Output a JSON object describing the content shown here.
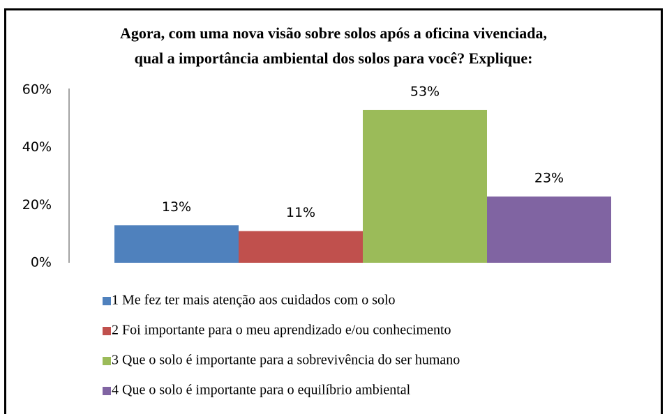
{
  "chart_data": {
    "type": "bar",
    "title": [
      "Agora, com uma nova visão sobre solos após a oficina vivenciada,",
      "qual a importância ambiental dos solos para você? Explique:"
    ],
    "series": [
      {
        "name": "1 Me fez ter mais atenção aos cuidados com o solo",
        "color": "#4f81bd",
        "values": [
          13
        ],
        "value_labels": [
          "13%"
        ]
      },
      {
        "name": "2 Foi importante para o meu aprendizado e/ou conhecimento",
        "color": "#c0504d",
        "values": [
          11
        ],
        "value_labels": [
          "11%"
        ]
      },
      {
        "name": "3 Que o solo é importante para a sobrevivência do ser humano",
        "color": "#9bbb59",
        "values": [
          53
        ],
        "value_labels": [
          "53%"
        ]
      },
      {
        "name": "4 Que o solo é importante para o equilíbrio ambiental",
        "color": "#8064a2",
        "values": [
          23
        ],
        "value_labels": [
          "23%"
        ]
      }
    ],
    "ylim": [
      0,
      60
    ],
    "yticks": [
      {
        "value": 0,
        "label": "0%"
      },
      {
        "value": 20,
        "label": "20%"
      },
      {
        "value": 40,
        "label": "40%"
      },
      {
        "value": 60,
        "label": "60%"
      }
    ],
    "grid": false,
    "legend": "bottom"
  }
}
